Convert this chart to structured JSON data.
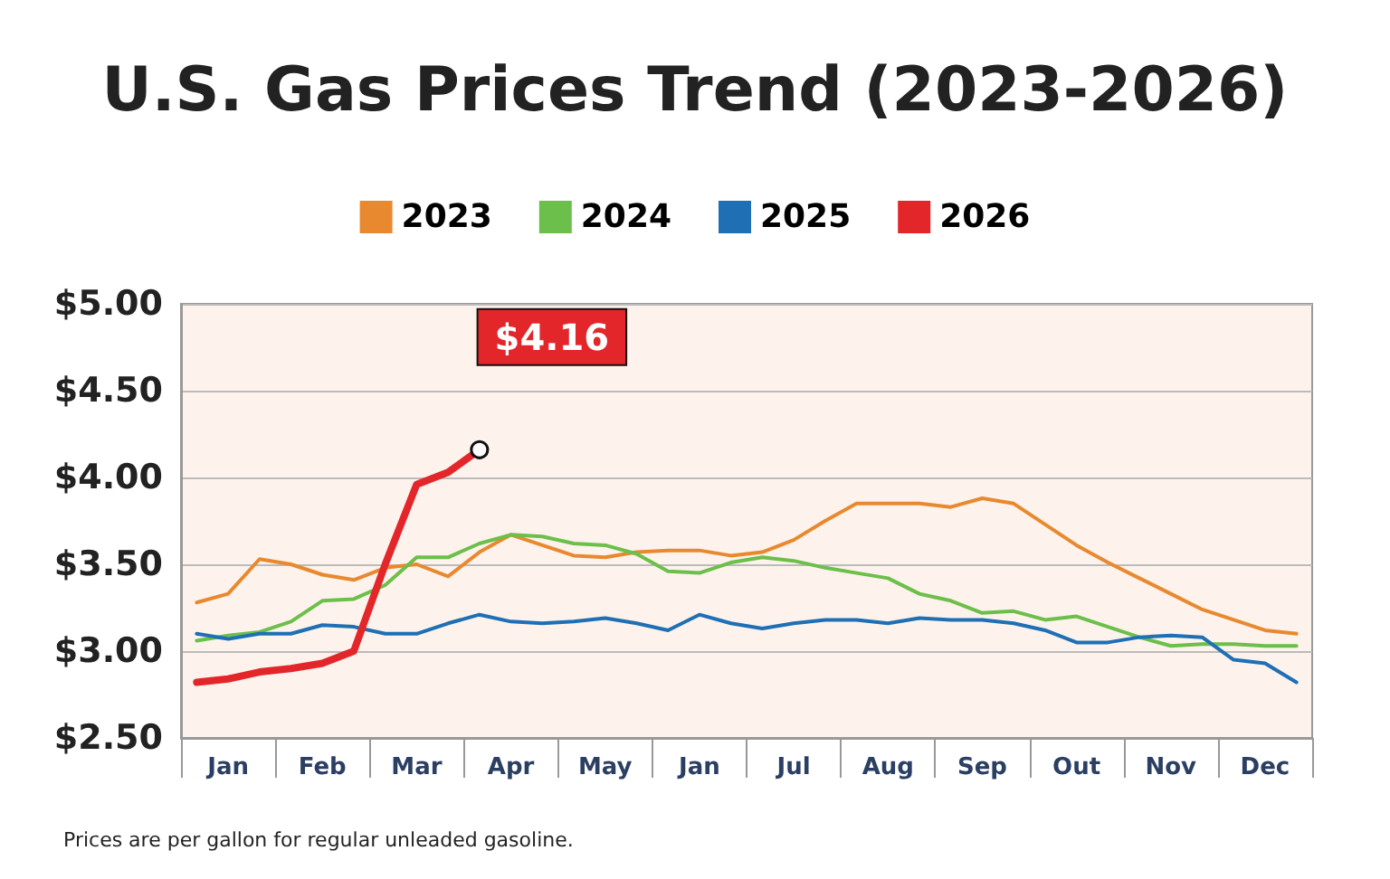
{
  "chart_data": {
    "type": "line",
    "title": "U.S. Gas Prices Trend (2023-2026)",
    "categories": [
      null,
      "Jan",
      null,
      null,
      "Feb",
      null,
      null,
      "Mar",
      null,
      null,
      "Apr",
      null,
      null,
      "May",
      null,
      null,
      "Jan",
      null,
      null,
      "Jul",
      null,
      null,
      "Aug",
      null,
      null,
      "Sep",
      null,
      null,
      "Out",
      null,
      null,
      "Nov",
      null,
      null,
      "Dec",
      null
    ],
    "series": [
      {
        "name": "2023",
        "color": "#e8892f",
        "values": [
          3.28,
          3.33,
          3.53,
          3.5,
          3.44,
          3.41,
          3.48,
          3.5,
          3.43,
          3.57,
          3.67,
          3.61,
          3.55,
          3.54,
          3.57,
          3.58,
          3.58,
          3.55,
          3.57,
          3.64,
          3.75,
          3.85,
          3.85,
          3.85,
          3.83,
          3.88,
          3.85,
          3.73,
          3.61,
          3.51,
          3.42,
          3.33,
          3.24,
          3.18,
          3.12,
          3.1
        ]
      },
      {
        "name": "2024",
        "color": "#6cbf4a",
        "values": [
          3.06,
          3.09,
          3.11,
          3.17,
          3.29,
          3.3,
          3.38,
          3.54,
          3.54,
          3.62,
          3.67,
          3.66,
          3.62,
          3.61,
          3.56,
          3.46,
          3.45,
          3.51,
          3.54,
          3.52,
          3.48,
          3.45,
          3.42,
          3.33,
          3.29,
          3.22,
          3.23,
          3.18,
          3.2,
          3.14,
          3.08,
          3.03,
          3.04,
          3.04,
          3.03,
          3.03
        ]
      },
      {
        "name": "2025",
        "color": "#1f6fb5",
        "values": [
          3.1,
          3.07,
          3.1,
          3.1,
          3.15,
          3.14,
          3.1,
          3.1,
          3.16,
          3.21,
          3.17,
          3.16,
          3.17,
          3.19,
          3.16,
          3.12,
          3.21,
          3.16,
          3.13,
          3.16,
          3.18,
          3.18,
          3.16,
          3.19,
          3.18,
          3.18,
          3.16,
          3.12,
          3.05,
          3.05,
          3.08,
          3.09,
          3.08,
          2.95,
          2.93,
          2.82
        ]
      },
      {
        "name": "2026",
        "color": "#e3262a",
        "values": [
          2.82,
          2.84,
          2.88,
          2.9,
          2.93,
          3.0,
          3.5,
          3.96,
          4.03,
          4.16,
          null,
          null,
          null,
          null,
          null,
          null,
          null,
          null,
          null,
          null,
          null,
          null,
          null,
          null,
          null,
          null,
          null,
          null,
          null,
          null,
          null,
          null,
          null,
          null,
          null,
          null
        ],
        "value_labels": [
          null,
          null,
          null,
          null,
          null,
          null,
          null,
          null,
          null,
          "$4.16",
          null,
          null,
          null,
          null,
          null,
          null,
          null,
          null,
          null,
          null,
          null,
          null,
          null,
          null,
          null,
          null,
          null,
          null,
          null,
          null,
          null,
          null,
          null,
          null,
          null,
          null
        ]
      }
    ],
    "ylim": [
      2.5,
      5.0
    ],
    "yticks": [
      {
        "value": 2.5,
        "label": "$2.50"
      },
      {
        "value": 3.0,
        "label": "$3.00"
      },
      {
        "value": 3.5,
        "label": "$3.50"
      },
      {
        "value": 4.0,
        "label": "$4.00"
      },
      {
        "value": 4.5,
        "label": "$4.50"
      },
      {
        "value": 5.0,
        "label": "$5.00"
      }
    ],
    "grid": "y",
    "legend": "top",
    "marker": "none",
    "annotations": [
      "Prices are per gallon for regular unleaded gasoline."
    ]
  }
}
